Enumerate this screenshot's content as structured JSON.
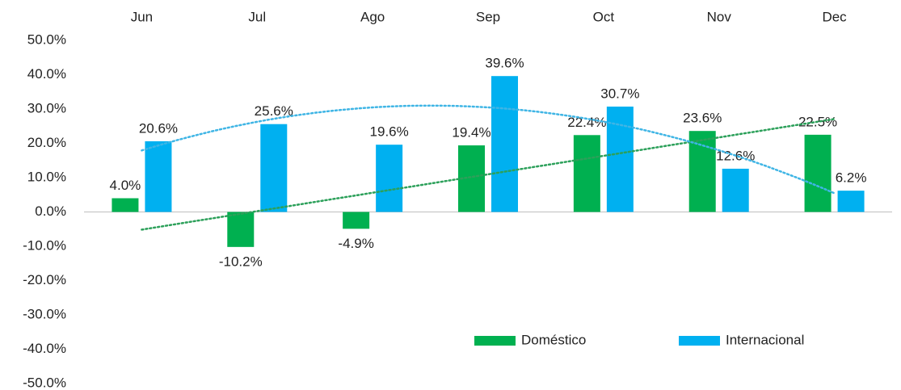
{
  "chart_data": {
    "type": "bar",
    "categories": [
      "Jun",
      "Jul",
      "Ago",
      "Sep",
      "Oct",
      "Nov",
      "Dec"
    ],
    "series": [
      {
        "name": "Doméstico",
        "color": "#00b050",
        "trendline": "linear",
        "trendline_color": "#2ca05a",
        "values": [
          4.0,
          -10.2,
          -4.9,
          19.4,
          22.4,
          23.6,
          22.5
        ],
        "value_labels": [
          "4.0%",
          "-10.2%",
          "-4.9%",
          "19.4%",
          "22.4%",
          "23.6%",
          "22.5%"
        ]
      },
      {
        "name": "Internacional",
        "color": "#00b0f0",
        "trendline": "polynomial-2",
        "trendline_color": "#3fb5e5",
        "values": [
          20.6,
          25.6,
          19.6,
          39.6,
          30.7,
          12.6,
          6.2
        ],
        "value_labels": [
          "20.6%",
          "25.6%",
          "19.6%",
          "39.6%",
          "30.7%",
          "12.6%",
          "6.2%"
        ]
      }
    ],
    "ylim": [
      -50,
      50
    ],
    "yticks": [
      {
        "value": 50,
        "label": "50.0%"
      },
      {
        "value": 40,
        "label": "40.0%"
      },
      {
        "value": 30,
        "label": "30.0%"
      },
      {
        "value": 20,
        "label": "20.0%"
      },
      {
        "value": 10,
        "label": "10.0%"
      },
      {
        "value": 0,
        "label": "0.0%"
      },
      {
        "value": -10,
        "label": "-10.0%"
      },
      {
        "value": -20,
        "label": "-20.0%"
      },
      {
        "value": -30,
        "label": "-30.0%"
      },
      {
        "value": -40,
        "label": "-40.0%"
      },
      {
        "value": -50,
        "label": "-50.0%"
      }
    ],
    "category_axis": "top",
    "grid": false,
    "legend": "bottom-right"
  }
}
